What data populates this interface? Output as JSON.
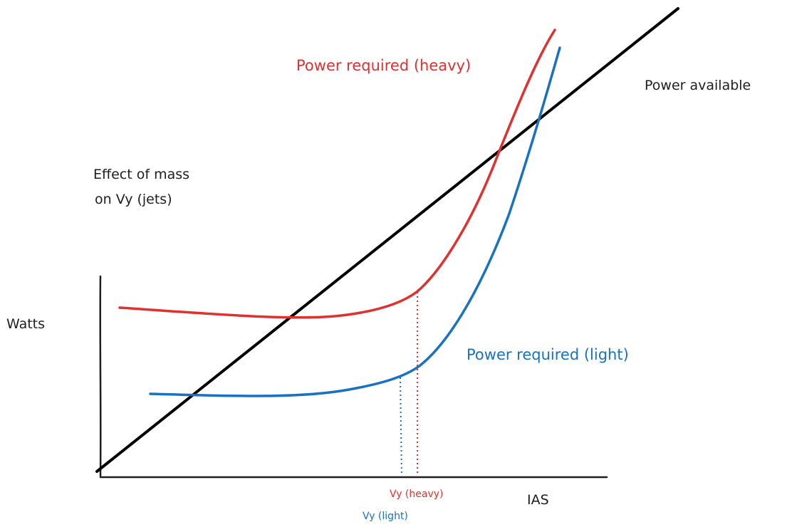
{
  "diagram": {
    "title_line1": "Effect of mass",
    "title_line2": "on Vy (jets)",
    "y_axis_label": "Watts",
    "x_axis_label": "IAS",
    "curves": {
      "power_available": {
        "label": "Power available",
        "color": "#000000"
      },
      "power_required_heavy": {
        "label": "Power required (heavy)",
        "color": "#e03131"
      },
      "power_required_light": {
        "label": "Power required (light)",
        "color": "#1971c2"
      }
    },
    "markers": {
      "vy_heavy": {
        "label": "Vy (heavy)",
        "color": "#e03131"
      },
      "vy_light": {
        "label": "Vy (light)",
        "color": "#1971c2"
      }
    }
  }
}
